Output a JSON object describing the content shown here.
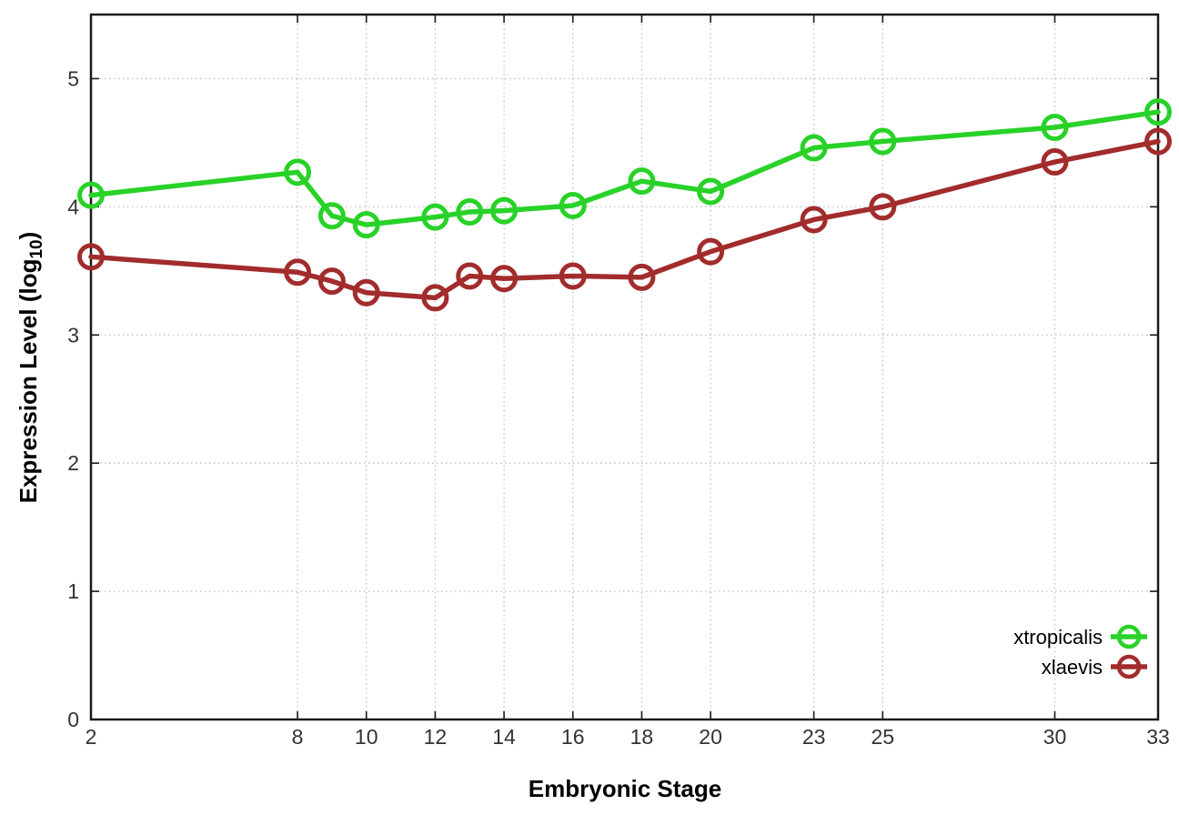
{
  "chart_data": {
    "type": "line",
    "title": "",
    "xlabel": "Embryonic Stage",
    "ylabel": "Expression Level (log10)",
    "ylabel_parts": {
      "main": "Expression Level (log",
      "sub": "10",
      "end": ")"
    },
    "x": [
      2,
      8,
      9,
      10,
      12,
      13,
      14,
      16,
      18,
      20,
      23,
      25,
      30,
      33
    ],
    "xtick_labels": [
      2,
      8,
      10,
      12,
      14,
      16,
      18,
      20,
      23,
      25,
      30,
      33
    ],
    "ytick_labels": [
      0,
      1,
      2,
      3,
      4,
      5
    ],
    "xlim": [
      2,
      33
    ],
    "ylim": [
      0,
      5.5
    ],
    "grid": true,
    "grid_style": "dotted",
    "legend_position": "inside-bottom-right",
    "series": [
      {
        "name": "xtropicalis",
        "color": "#28d228",
        "marker": "open-circle",
        "values": [
          4.09,
          4.27,
          3.93,
          3.86,
          3.92,
          3.96,
          3.97,
          4.01,
          4.2,
          4.12,
          4.46,
          4.51,
          4.62,
          4.74
        ]
      },
      {
        "name": "xlaevis",
        "color": "#a22c2c",
        "marker": "open-circle",
        "values": [
          3.61,
          3.49,
          3.42,
          3.33,
          3.29,
          3.46,
          3.44,
          3.46,
          3.45,
          3.65,
          3.9,
          4.0,
          4.35,
          4.51
        ]
      }
    ],
    "frame_color": "#1a1a1a",
    "grid_color": "#bfbfbf",
    "tick_label_color": "#333333",
    "title_color": "#000000"
  }
}
